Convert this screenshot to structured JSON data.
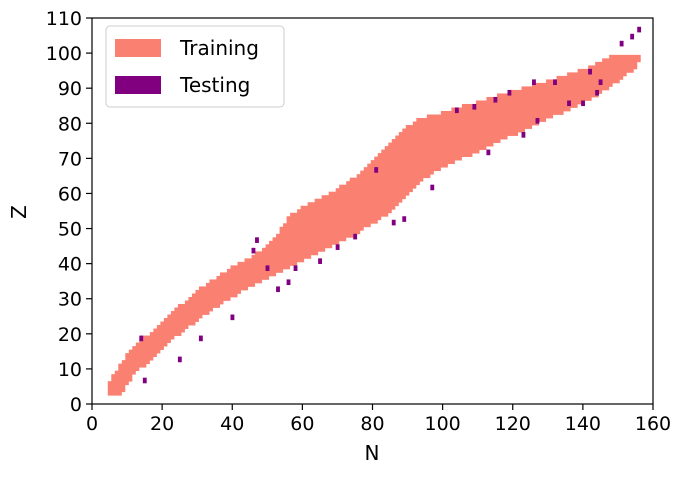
{
  "chart_data": {
    "type": "heatmap",
    "title": "",
    "xlabel": "N",
    "ylabel": "Z",
    "xlim": [
      0,
      160
    ],
    "ylim": [
      0,
      110
    ],
    "xticks": [
      "0",
      "20",
      "40",
      "60",
      "80",
      "100",
      "120",
      "140",
      "160"
    ],
    "yticks": [
      "0",
      "10",
      "20",
      "30",
      "40",
      "50",
      "60",
      "70",
      "80",
      "90",
      "100",
      "110"
    ],
    "grid": false,
    "legend": {
      "placement": "top-left",
      "entries": [
        {
          "name": "Training",
          "color": "#fa8072"
        },
        {
          "name": "Testing",
          "color": "#800080"
        }
      ]
    },
    "training_band": [
      {
        "Z": 3,
        "N_min": 5,
        "N_max": 8
      },
      {
        "Z": 6,
        "N_min": 5,
        "N_max": 10
      },
      {
        "Z": 9,
        "N_min": 7,
        "N_max": 12
      },
      {
        "Z": 12,
        "N_min": 9,
        "N_max": 16
      },
      {
        "Z": 15,
        "N_min": 11,
        "N_max": 19
      },
      {
        "Z": 18,
        "N_min": 14,
        "N_max": 22
      },
      {
        "Z": 21,
        "N_min": 18,
        "N_max": 26
      },
      {
        "Z": 24,
        "N_min": 21,
        "N_max": 30
      },
      {
        "Z": 27,
        "N_min": 24,
        "N_max": 34
      },
      {
        "Z": 30,
        "N_min": 28,
        "N_max": 39
      },
      {
        "Z": 33,
        "N_min": 31,
        "N_max": 44
      },
      {
        "Z": 36,
        "N_min": 36,
        "N_max": 50
      },
      {
        "Z": 39,
        "N_min": 40,
        "N_max": 56
      },
      {
        "Z": 42,
        "N_min": 46,
        "N_max": 62
      },
      {
        "Z": 45,
        "N_min": 50,
        "N_max": 68
      },
      {
        "Z": 48,
        "N_min": 53,
        "N_max": 74
      },
      {
        "Z": 51,
        "N_min": 55,
        "N_max": 79
      },
      {
        "Z": 54,
        "N_min": 57,
        "N_max": 84
      },
      {
        "Z": 57,
        "N_min": 62,
        "N_max": 87
      },
      {
        "Z": 60,
        "N_min": 68,
        "N_max": 90
      },
      {
        "Z": 63,
        "N_min": 73,
        "N_max": 93
      },
      {
        "Z": 66,
        "N_min": 77,
        "N_max": 97
      },
      {
        "Z": 69,
        "N_min": 80,
        "N_max": 103
      },
      {
        "Z": 72,
        "N_min": 83,
        "N_max": 110
      },
      {
        "Z": 75,
        "N_min": 86,
        "N_max": 116
      },
      {
        "Z": 78,
        "N_min": 89,
        "N_max": 123
      },
      {
        "Z": 81,
        "N_min": 93,
        "N_max": 129
      },
      {
        "Z": 84,
        "N_min": 103,
        "N_max": 136
      },
      {
        "Z": 87,
        "N_min": 113,
        "N_max": 142
      },
      {
        "Z": 90,
        "N_min": 123,
        "N_max": 147
      },
      {
        "Z": 93,
        "N_min": 133,
        "N_max": 151
      },
      {
        "Z": 96,
        "N_min": 142,
        "N_max": 155
      },
      {
        "Z": 99,
        "N_min": 148,
        "N_max": 156
      }
    ],
    "testing_points": [
      {
        "N": 15,
        "Z": 7
      },
      {
        "N": 14,
        "Z": 19
      },
      {
        "N": 25,
        "Z": 13
      },
      {
        "N": 31,
        "Z": 19
      },
      {
        "N": 40,
        "Z": 25
      },
      {
        "N": 46,
        "Z": 44
      },
      {
        "N": 47,
        "Z": 47
      },
      {
        "N": 50,
        "Z": 39
      },
      {
        "N": 53,
        "Z": 33
      },
      {
        "N": 56,
        "Z": 35
      },
      {
        "N": 58,
        "Z": 39
      },
      {
        "N": 65,
        "Z": 41
      },
      {
        "N": 70,
        "Z": 45
      },
      {
        "N": 75,
        "Z": 48
      },
      {
        "N": 81,
        "Z": 67
      },
      {
        "N": 86,
        "Z": 52
      },
      {
        "N": 89,
        "Z": 53
      },
      {
        "N": 97,
        "Z": 62
      },
      {
        "N": 104,
        "Z": 84
      },
      {
        "N": 109,
        "Z": 85
      },
      {
        "N": 113,
        "Z": 72
      },
      {
        "N": 115,
        "Z": 87
      },
      {
        "N": 119,
        "Z": 89
      },
      {
        "N": 123,
        "Z": 77
      },
      {
        "N": 127,
        "Z": 81
      },
      {
        "N": 126,
        "Z": 92
      },
      {
        "N": 132,
        "Z": 92
      },
      {
        "N": 136,
        "Z": 86
      },
      {
        "N": 140,
        "Z": 86
      },
      {
        "N": 142,
        "Z": 95
      },
      {
        "N": 144,
        "Z": 89
      },
      {
        "N": 145,
        "Z": 92
      },
      {
        "N": 151,
        "Z": 103
      },
      {
        "N": 154,
        "Z": 105
      },
      {
        "N": 156,
        "Z": 107
      }
    ]
  }
}
